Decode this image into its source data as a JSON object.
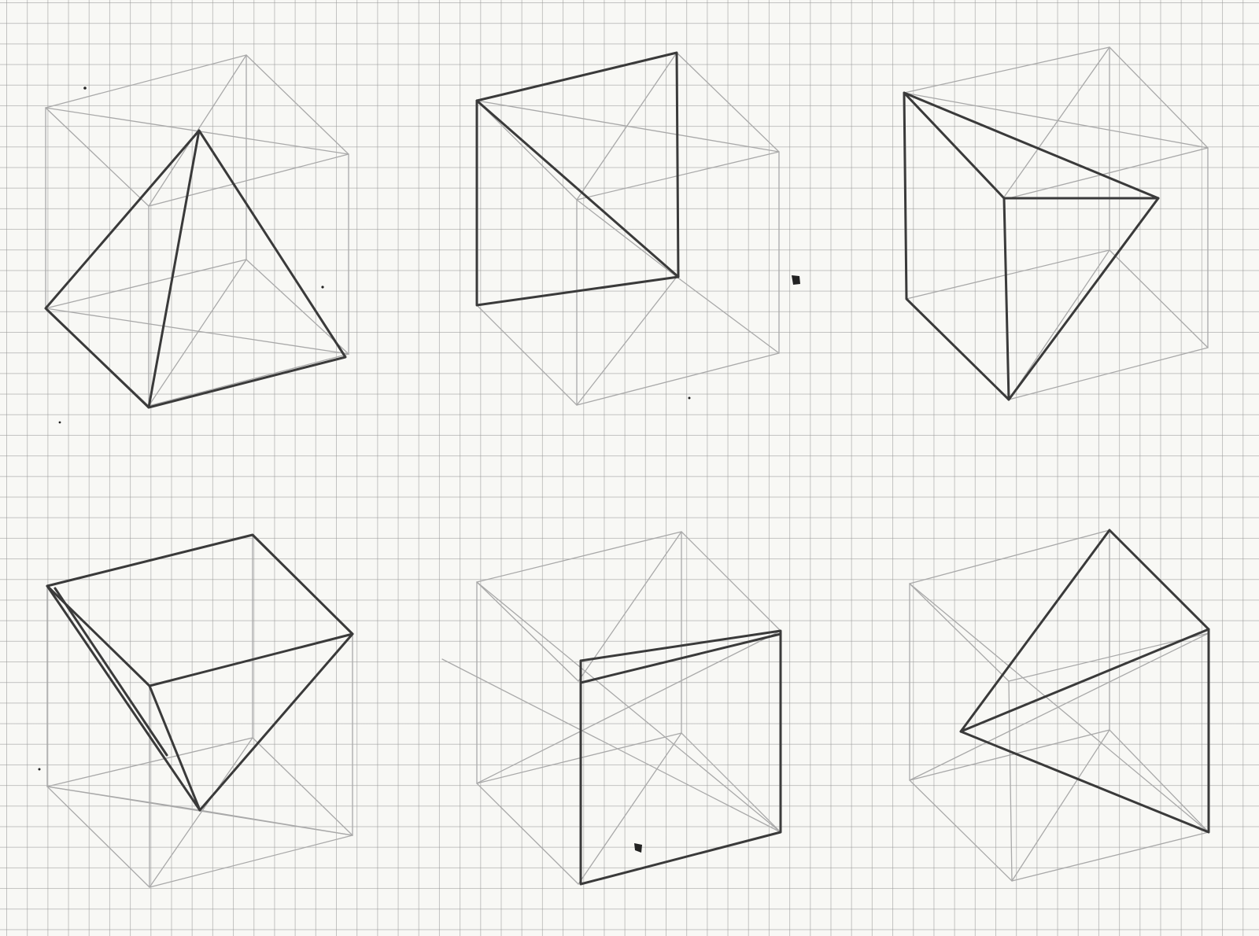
{
  "sheet": {
    "paper_color": "#f8f8f5",
    "grid_color": "#969696",
    "pencil_dark": "#3a3a3a",
    "pencil_light": "#a9a9a9"
  },
  "sketches": [
    {
      "name": "sketch-pyramid-in-cube",
      "shape": "square pyramid inscribed in wireframe cube"
    },
    {
      "name": "sketch-triangular-prism-top",
      "shape": "triangular prism with vertical square face in wireframe cube"
    },
    {
      "name": "sketch-wedge-top-right",
      "shape": "wedge with slanted triangular top in wireframe cube"
    },
    {
      "name": "sketch-inverted-wedge",
      "shape": "inverted wedge with square top face in wireframe cube"
    },
    {
      "name": "sketch-prism-front-face",
      "shape": "prism with front square face in wireframe cube"
    },
    {
      "name": "sketch-triangular-pyramid",
      "shape": "triangular pyramid in wireframe cube"
    }
  ]
}
